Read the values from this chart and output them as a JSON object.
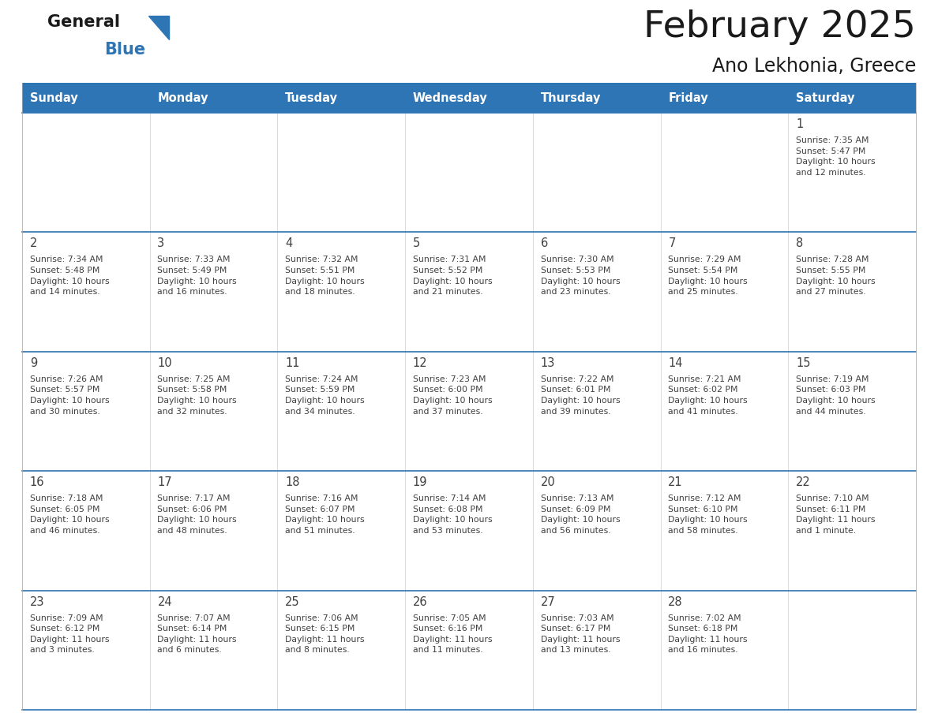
{
  "title": "February 2025",
  "subtitle": "Ano Lekhonia, Greece",
  "header_bg_color": "#2E75B6",
  "header_text_color": "#FFFFFF",
  "cell_bg_color": "#FFFFFF",
  "border_color": "#2E75B6",
  "text_color": "#404040",
  "days_of_week": [
    "Sunday",
    "Monday",
    "Tuesday",
    "Wednesday",
    "Thursday",
    "Friday",
    "Saturday"
  ],
  "calendar_data": [
    [
      {
        "day": "",
        "info": ""
      },
      {
        "day": "",
        "info": ""
      },
      {
        "day": "",
        "info": ""
      },
      {
        "day": "",
        "info": ""
      },
      {
        "day": "",
        "info": ""
      },
      {
        "day": "",
        "info": ""
      },
      {
        "day": "1",
        "info": "Sunrise: 7:35 AM\nSunset: 5:47 PM\nDaylight: 10 hours\nand 12 minutes."
      }
    ],
    [
      {
        "day": "2",
        "info": "Sunrise: 7:34 AM\nSunset: 5:48 PM\nDaylight: 10 hours\nand 14 minutes."
      },
      {
        "day": "3",
        "info": "Sunrise: 7:33 AM\nSunset: 5:49 PM\nDaylight: 10 hours\nand 16 minutes."
      },
      {
        "day": "4",
        "info": "Sunrise: 7:32 AM\nSunset: 5:51 PM\nDaylight: 10 hours\nand 18 minutes."
      },
      {
        "day": "5",
        "info": "Sunrise: 7:31 AM\nSunset: 5:52 PM\nDaylight: 10 hours\nand 21 minutes."
      },
      {
        "day": "6",
        "info": "Sunrise: 7:30 AM\nSunset: 5:53 PM\nDaylight: 10 hours\nand 23 minutes."
      },
      {
        "day": "7",
        "info": "Sunrise: 7:29 AM\nSunset: 5:54 PM\nDaylight: 10 hours\nand 25 minutes."
      },
      {
        "day": "8",
        "info": "Sunrise: 7:28 AM\nSunset: 5:55 PM\nDaylight: 10 hours\nand 27 minutes."
      }
    ],
    [
      {
        "day": "9",
        "info": "Sunrise: 7:26 AM\nSunset: 5:57 PM\nDaylight: 10 hours\nand 30 minutes."
      },
      {
        "day": "10",
        "info": "Sunrise: 7:25 AM\nSunset: 5:58 PM\nDaylight: 10 hours\nand 32 minutes."
      },
      {
        "day": "11",
        "info": "Sunrise: 7:24 AM\nSunset: 5:59 PM\nDaylight: 10 hours\nand 34 minutes."
      },
      {
        "day": "12",
        "info": "Sunrise: 7:23 AM\nSunset: 6:00 PM\nDaylight: 10 hours\nand 37 minutes."
      },
      {
        "day": "13",
        "info": "Sunrise: 7:22 AM\nSunset: 6:01 PM\nDaylight: 10 hours\nand 39 minutes."
      },
      {
        "day": "14",
        "info": "Sunrise: 7:21 AM\nSunset: 6:02 PM\nDaylight: 10 hours\nand 41 minutes."
      },
      {
        "day": "15",
        "info": "Sunrise: 7:19 AM\nSunset: 6:03 PM\nDaylight: 10 hours\nand 44 minutes."
      }
    ],
    [
      {
        "day": "16",
        "info": "Sunrise: 7:18 AM\nSunset: 6:05 PM\nDaylight: 10 hours\nand 46 minutes."
      },
      {
        "day": "17",
        "info": "Sunrise: 7:17 AM\nSunset: 6:06 PM\nDaylight: 10 hours\nand 48 minutes."
      },
      {
        "day": "18",
        "info": "Sunrise: 7:16 AM\nSunset: 6:07 PM\nDaylight: 10 hours\nand 51 minutes."
      },
      {
        "day": "19",
        "info": "Sunrise: 7:14 AM\nSunset: 6:08 PM\nDaylight: 10 hours\nand 53 minutes."
      },
      {
        "day": "20",
        "info": "Sunrise: 7:13 AM\nSunset: 6:09 PM\nDaylight: 10 hours\nand 56 minutes."
      },
      {
        "day": "21",
        "info": "Sunrise: 7:12 AM\nSunset: 6:10 PM\nDaylight: 10 hours\nand 58 minutes."
      },
      {
        "day": "22",
        "info": "Sunrise: 7:10 AM\nSunset: 6:11 PM\nDaylight: 11 hours\nand 1 minute."
      }
    ],
    [
      {
        "day": "23",
        "info": "Sunrise: 7:09 AM\nSunset: 6:12 PM\nDaylight: 11 hours\nand 3 minutes."
      },
      {
        "day": "24",
        "info": "Sunrise: 7:07 AM\nSunset: 6:14 PM\nDaylight: 11 hours\nand 6 minutes."
      },
      {
        "day": "25",
        "info": "Sunrise: 7:06 AM\nSunset: 6:15 PM\nDaylight: 11 hours\nand 8 minutes."
      },
      {
        "day": "26",
        "info": "Sunrise: 7:05 AM\nSunset: 6:16 PM\nDaylight: 11 hours\nand 11 minutes."
      },
      {
        "day": "27",
        "info": "Sunrise: 7:03 AM\nSunset: 6:17 PM\nDaylight: 11 hours\nand 13 minutes."
      },
      {
        "day": "28",
        "info": "Sunrise: 7:02 AM\nSunset: 6:18 PM\nDaylight: 11 hours\nand 16 minutes."
      },
      {
        "day": "",
        "info": ""
      }
    ]
  ],
  "logo_text_general": "General",
  "logo_text_blue": "Blue",
  "logo_color_general": "#1a1a1a",
  "logo_color_blue": "#2E75B6",
  "logo_triangle_color": "#2E75B6",
  "figsize": [
    11.88,
    9.18
  ],
  "dpi": 100
}
